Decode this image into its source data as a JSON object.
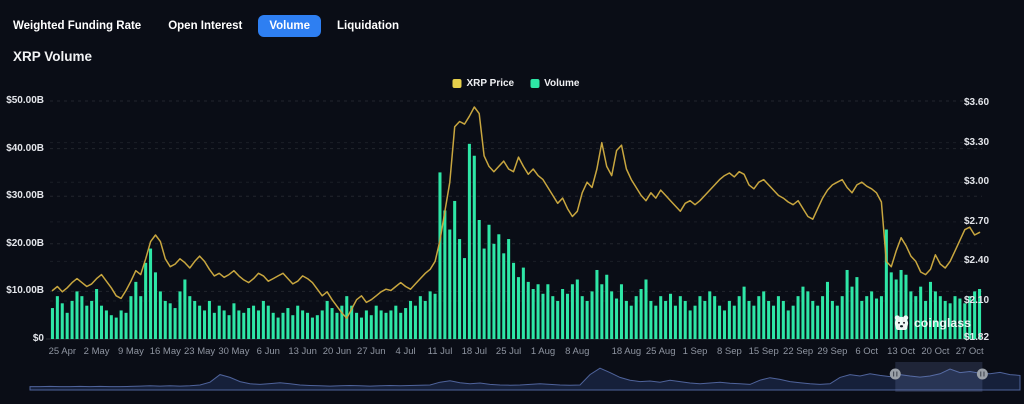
{
  "header": {
    "title": "XRP Volume",
    "tabs": [
      {
        "label": "Weighted Funding Rate",
        "active": false
      },
      {
        "label": "Open Interest",
        "active": false
      },
      {
        "label": "Volume",
        "active": true
      },
      {
        "label": "Liquidation",
        "active": false
      }
    ]
  },
  "legend": {
    "items": [
      {
        "label": "XRP Price",
        "color": "#e6cf4b"
      },
      {
        "label": "Volume",
        "color": "#2ee6a6"
      }
    ]
  },
  "watermark": {
    "label": "coinglass"
  },
  "colors": {
    "background": "#0a0d16",
    "accent_blue": "#2e7ff2",
    "bar_green": "#2ee6a6",
    "line_gold": "#c8a63f",
    "grid": "rgba(255,255,255,0.10)",
    "grid_right": "rgba(255,255,255,0.07)",
    "axis_text": "#e3e5ea",
    "date_text": "#8f95a1",
    "nav_fill": "#16203a",
    "nav_line": "#4f639b",
    "nav_selection": "rgba(125,150,210,0.18)",
    "nav_handle": "#9aa0a8"
  },
  "chart_data": {
    "type": "bar",
    "title": "XRP Volume",
    "legend_position": "top-center",
    "grid": "dashed-horizontal",
    "x_tick_labels": [
      "25 Apr",
      "2 May",
      "9 May",
      "16 May",
      "23 May",
      "30 May",
      "6 Jun",
      "13 Jun",
      "20 Jun",
      "27 Jun",
      "4 Jul",
      "11 Jul",
      "18 Jul",
      "25 Jul",
      "1 Aug",
      "8 Aug",
      "18 Aug",
      "25 Aug",
      "1 Sep",
      "8 Sep",
      "15 Sep",
      "22 Sep",
      "29 Sep",
      "6 Oct",
      "13 Oct",
      "20 Oct",
      "27 Oct"
    ],
    "x_tick_day_index": [
      2,
      9,
      16,
      23,
      30,
      37,
      44,
      51,
      58,
      65,
      72,
      79,
      86,
      93,
      100,
      107,
      117,
      124,
      131,
      138,
      145,
      152,
      159,
      166,
      173,
      180,
      187
    ],
    "left_axis": {
      "series": "Volume",
      "unit": "$ billions",
      "tick_labels": [
        "$50.00B",
        "$40.00B",
        "$30.00B",
        "$20.00B",
        "$10.00B",
        "$0"
      ],
      "tick_values": [
        50,
        40,
        30,
        20,
        10,
        0
      ],
      "range": [
        0,
        50
      ]
    },
    "right_axis": {
      "series": "XRP Price",
      "unit": "$",
      "tick_labels": [
        "$3.60",
        "$3.30",
        "$3.00",
        "$2.70",
        "$2.40",
        "$2.10",
        "$1.82"
      ],
      "tick_values": [
        3.6,
        3.3,
        3.0,
        2.7,
        2.4,
        2.1,
        1.82
      ],
      "range": [
        1.82,
        3.6
      ]
    },
    "series": [
      {
        "name": "Volume",
        "type": "bar",
        "axis": "left",
        "color": "#2ee6a6",
        "values": [
          6.5,
          9,
          7.5,
          5.5,
          8,
          10,
          9,
          7,
          8,
          10.5,
          7,
          6,
          5,
          4.5,
          6,
          5.5,
          9,
          12,
          9,
          16,
          19,
          14,
          10,
          8,
          7.5,
          6.5,
          10,
          12.5,
          9,
          8,
          7,
          6,
          8,
          5.5,
          7,
          6,
          5,
          7.5,
          6,
          5.5,
          6.5,
          7,
          6,
          8,
          7,
          5.5,
          4.5,
          5.5,
          6.5,
          5,
          7,
          6,
          5.5,
          4.5,
          5,
          6,
          8,
          6.5,
          5.5,
          7,
          9,
          7,
          5.5,
          4.5,
          6,
          5,
          7,
          6,
          5.5,
          6,
          7,
          5.5,
          6.5,
          8,
          7,
          9,
          8,
          10,
          9.5,
          35,
          27,
          23,
          29,
          21,
          17,
          41,
          38.5,
          25,
          19,
          24,
          20,
          22,
          18,
          21,
          16,
          13,
          15,
          12,
          10.5,
          11.5,
          9.5,
          11.5,
          9,
          8,
          10.5,
          9.5,
          11.5,
          12.5,
          9,
          8,
          10,
          14.5,
          11.5,
          13.5,
          10,
          8.5,
          11.5,
          8,
          7,
          9,
          10.5,
          12.5,
          8,
          7,
          9,
          8,
          9.5,
          7,
          9,
          8,
          6,
          7,
          9,
          8,
          10,
          9,
          7,
          6,
          8,
          7,
          9,
          11,
          8,
          7,
          9,
          10,
          8,
          7,
          9,
          8,
          6,
          7,
          9,
          11,
          10,
          8,
          7,
          9,
          12,
          8,
          7,
          9,
          14.5,
          11,
          13,
          8,
          9,
          10,
          8.5,
          9,
          23,
          14,
          12.5,
          14.5,
          13.5,
          10,
          9,
          11,
          8,
          12,
          10,
          9,
          8,
          7.5,
          9,
          8.5,
          7.5,
          9,
          10,
          10.5
        ]
      },
      {
        "name": "XRP Price",
        "type": "line",
        "axis": "right",
        "color": "#c8a63f",
        "values": [
          2.18,
          2.21,
          2.17,
          2.2,
          2.24,
          2.27,
          2.24,
          2.21,
          2.23,
          2.27,
          2.3,
          2.25,
          2.2,
          2.14,
          2.12,
          2.18,
          2.25,
          2.33,
          2.3,
          2.42,
          2.55,
          2.6,
          2.55,
          2.42,
          2.36,
          2.38,
          2.42,
          2.39,
          2.35,
          2.4,
          2.44,
          2.4,
          2.34,
          2.29,
          2.31,
          2.28,
          2.3,
          2.33,
          2.29,
          2.26,
          2.24,
          2.27,
          2.31,
          2.29,
          2.25,
          2.27,
          2.29,
          2.31,
          2.27,
          2.23,
          2.25,
          2.29,
          2.27,
          2.24,
          2.19,
          2.14,
          2.17,
          2.11,
          2.06,
          2.01,
          1.97,
          2.04,
          2.11,
          2.14,
          2.09,
          2.11,
          2.14,
          2.17,
          2.19,
          2.18,
          2.21,
          2.24,
          2.21,
          2.19,
          2.23,
          2.27,
          2.31,
          2.34,
          2.4,
          2.56,
          2.78,
          3.0,
          3.42,
          3.46,
          3.44,
          3.5,
          3.57,
          3.52,
          3.2,
          3.12,
          3.08,
          3.12,
          3.16,
          3.1,
          3.08,
          3.19,
          3.12,
          3.06,
          3.1,
          3.05,
          3.02,
          2.96,
          2.9,
          2.84,
          2.88,
          2.8,
          2.74,
          2.78,
          2.92,
          3.0,
          2.96,
          3.1,
          3.3,
          3.12,
          3.05,
          3.24,
          3.28,
          3.1,
          3.02,
          2.96,
          2.9,
          2.86,
          2.92,
          2.88,
          2.94,
          2.9,
          2.86,
          2.82,
          2.78,
          2.84,
          2.86,
          2.83,
          2.86,
          2.9,
          2.94,
          2.98,
          3.02,
          3.05,
          3.07,
          3.04,
          3.08,
          3.06,
          2.98,
          2.95,
          3.0,
          3.02,
          2.98,
          2.94,
          2.9,
          2.88,
          2.85,
          2.83,
          2.86,
          2.8,
          2.74,
          2.72,
          2.8,
          2.88,
          2.94,
          2.98,
          3.0,
          3.02,
          2.96,
          2.92,
          2.98,
          3.0,
          2.97,
          2.95,
          2.92,
          2.85,
          2.4,
          2.36,
          2.48,
          2.58,
          2.52,
          2.44,
          2.4,
          2.32,
          2.3,
          2.34,
          2.45,
          2.38,
          2.35,
          2.4,
          2.48,
          2.56,
          2.64,
          2.66,
          2.6,
          2.62
        ]
      }
    ]
  },
  "navigator": {
    "selection": [
      0.874,
      0.962
    ],
    "values": [
      0.12,
      0.12,
      0.13,
      0.12,
      0.12,
      0.13,
      0.12,
      0.13,
      0.12,
      0.12,
      0.13,
      0.14,
      0.15,
      0.14,
      0.15,
      0.14,
      0.15,
      0.18,
      0.28,
      0.55,
      0.45,
      0.3,
      0.22,
      0.2,
      0.23,
      0.26,
      0.22,
      0.18,
      0.16,
      0.15,
      0.14,
      0.15,
      0.16,
      0.15,
      0.14,
      0.15,
      0.16,
      0.15,
      0.16,
      0.17,
      0.18,
      0.28,
      0.33,
      0.26,
      0.22,
      0.25,
      0.2,
      0.18,
      0.17,
      0.18,
      0.2,
      0.22,
      0.2,
      0.18,
      0.17,
      0.18,
      0.55,
      0.78,
      0.62,
      0.45,
      0.35,
      0.3,
      0.32,
      0.28,
      0.35,
      0.3,
      0.25,
      0.22,
      0.25,
      0.28,
      0.24,
      0.22,
      0.2,
      0.35,
      0.44,
      0.38,
      0.3,
      0.26,
      0.22,
      0.2,
      0.22,
      0.45,
      0.55,
      0.5,
      0.58,
      0.52,
      0.48,
      0.55,
      0.5,
      0.46,
      0.5,
      0.58,
      0.75,
      0.62,
      0.66,
      0.6,
      0.58,
      0.63,
      0.55,
      0.52
    ]
  }
}
